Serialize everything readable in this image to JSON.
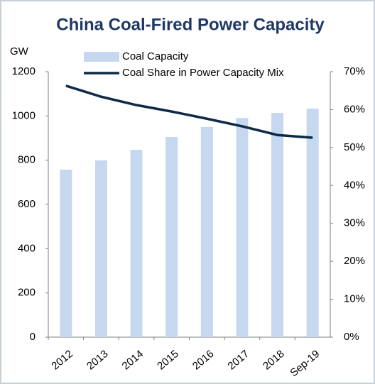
{
  "chart_data": {
    "type": "bar",
    "title": "China Coal-Fired Power Capacity",
    "y_label": "GW",
    "categories": [
      "2012",
      "2013",
      "2014",
      "2015",
      "2016",
      "2017",
      "2018",
      "Sep-19"
    ],
    "series": [
      {
        "name": "Coal Capacity",
        "color": "#c6d8f0",
        "values": [
          757,
          799,
          847,
          905,
          950,
          991,
          1014,
          1033
        ]
      },
      {
        "name": "Coal Share in Power Capacity Mix",
        "color": "#0e2a47",
        "axis": "y2",
        "values": [
          66.3,
          63.4,
          61.2,
          59.5,
          57.6,
          55.6,
          53.3,
          52.6
        ]
      }
    ],
    "ylim": [
      0,
      1200
    ],
    "yticks": [
      0,
      200,
      400,
      600,
      800,
      1000,
      1200
    ],
    "y2lim": [
      0,
      70
    ],
    "y2ticks": [
      {
        "value": 0,
        "label": "0%"
      },
      {
        "value": 10,
        "label": "10%"
      },
      {
        "value": 20,
        "label": "20%"
      },
      {
        "value": 30,
        "label": "30%"
      },
      {
        "value": 40,
        "label": "40%"
      },
      {
        "value": 50,
        "label": "50%"
      },
      {
        "value": 60,
        "label": "60%"
      },
      {
        "value": 70,
        "label": "70%"
      }
    ],
    "legend": "top"
  }
}
